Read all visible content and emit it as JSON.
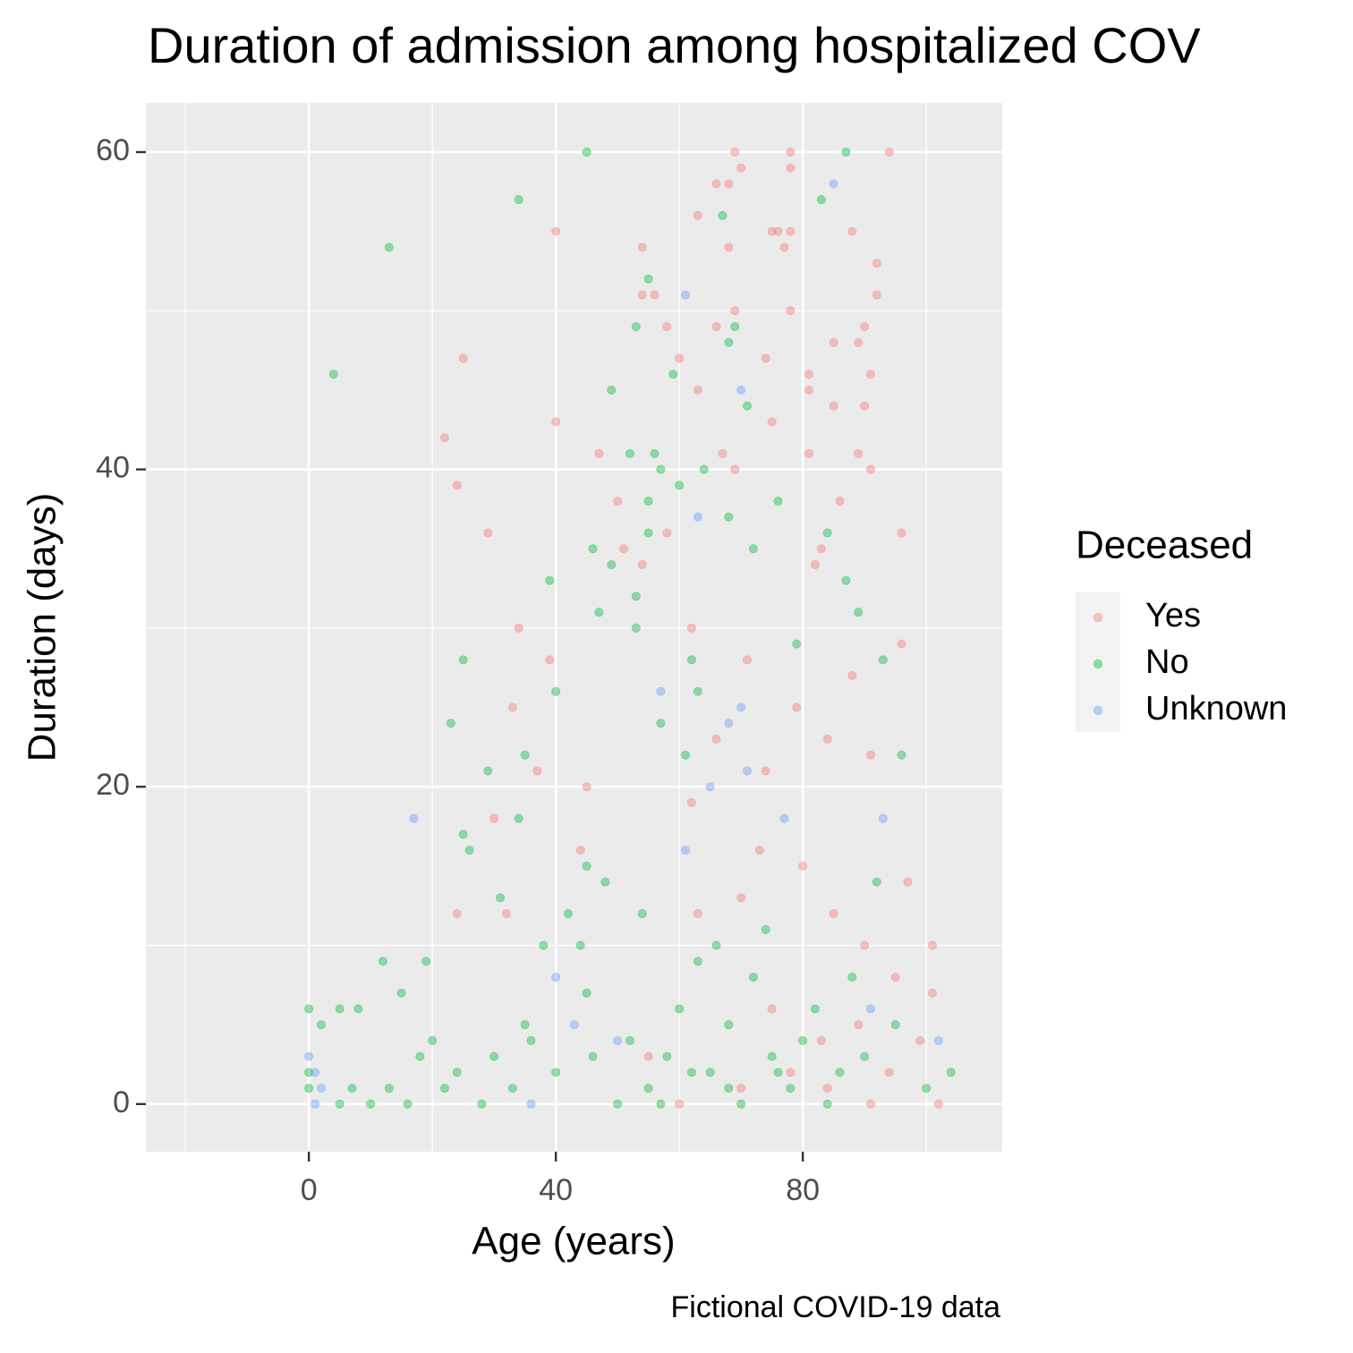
{
  "chart_data": {
    "type": "scatter",
    "title": "Duration of admission among hospitalized COV",
    "x_label": "Age (years)",
    "y_label": "Duration (days)",
    "caption": "Fictional COVID-19 data",
    "legend_title": "Deceased",
    "legend_position": "right",
    "grid": true,
    "xlim": [
      -26.4,
      112.3
    ],
    "xticks": [
      0,
      40,
      80
    ],
    "x_minor_ticks": [
      -20,
      20,
      60,
      100
    ],
    "ylim": [
      -3.0,
      63.1
    ],
    "yticks": [
      0,
      20,
      40,
      60
    ],
    "y_minor_ticks": [
      10,
      30,
      50
    ],
    "series": [
      {
        "name": "Yes",
        "color": "#F8766D",
        "x": [
          69,
          78,
          94,
          70,
          78,
          66,
          68,
          63,
          75,
          76,
          78,
          88,
          40,
          54,
          68,
          77,
          92,
          54,
          56,
          92,
          69,
          78,
          58,
          66,
          90,
          85,
          89,
          25,
          74,
          60,
          81,
          91,
          81,
          63,
          85,
          90,
          75,
          40,
          22,
          81,
          89,
          47,
          67,
          24,
          91,
          69,
          50,
          86,
          29,
          96,
          58,
          83,
          51,
          54,
          82,
          34,
          39,
          62,
          33,
          37,
          30,
          45,
          88,
          96,
          71,
          79,
          66,
          74,
          84,
          91,
          62,
          73,
          80,
          97,
          85,
          63,
          90,
          101,
          95,
          101,
          75,
          89,
          83,
          99,
          55,
          94,
          70,
          102,
          91,
          84,
          78,
          60,
          32,
          24,
          44,
          70
        ],
        "values": [
          60,
          60,
          60,
          59,
          59,
          58,
          58,
          56,
          55,
          55,
          55,
          55,
          55,
          54,
          54,
          54,
          53,
          51,
          51,
          51,
          50,
          50,
          49,
          49,
          49,
          48,
          48,
          47,
          47,
          47,
          46,
          46,
          45,
          45,
          44,
          44,
          43,
          43,
          42,
          41,
          41,
          41,
          41,
          39,
          40,
          40,
          38,
          38,
          36,
          36,
          36,
          35,
          35,
          34,
          34,
          30,
          28,
          30,
          25,
          21,
          18,
          20,
          27,
          29,
          28,
          25,
          23,
          21,
          23,
          22,
          19,
          16,
          15,
          14,
          12,
          12,
          10,
          10,
          8,
          7,
          6,
          5,
          4,
          4,
          3,
          2,
          1,
          0,
          0,
          1,
          2,
          0,
          12,
          12,
          16,
          13
        ]
      },
      {
        "name": "No",
        "color": "#00BA38",
        "x": [
          45,
          87,
          34,
          83,
          13,
          55,
          67,
          53,
          69,
          4,
          59,
          68,
          49,
          71,
          52,
          56,
          57,
          64,
          60,
          55,
          76,
          68,
          55,
          84,
          46,
          72,
          49,
          39,
          87,
          53,
          47,
          89,
          53,
          79,
          25,
          62,
          40,
          63,
          23,
          57,
          93,
          96,
          29,
          35,
          61,
          25,
          26,
          45,
          31,
          34,
          15,
          12,
          19,
          0,
          2,
          5,
          8,
          0,
          0,
          5,
          10,
          7,
          13,
          16,
          22,
          28,
          30,
          35,
          40,
          45,
          50,
          52,
          55,
          58,
          60,
          63,
          65,
          68,
          70,
          72,
          75,
          78,
          80,
          82,
          86,
          90,
          95,
          104,
          100,
          38,
          44,
          42,
          48,
          54,
          66,
          74,
          88,
          92,
          18,
          20,
          24,
          33,
          36,
          46,
          57,
          62,
          68,
          76,
          84
        ],
        "values": [
          60,
          60,
          57,
          57,
          54,
          52,
          56,
          49,
          49,
          46,
          46,
          48,
          45,
          44,
          41,
          41,
          40,
          40,
          39,
          38,
          38,
          37,
          36,
          36,
          35,
          35,
          34,
          33,
          33,
          32,
          31,
          31,
          30,
          29,
          28,
          28,
          26,
          26,
          24,
          24,
          28,
          22,
          21,
          22,
          22,
          17,
          16,
          15,
          13,
          18,
          7,
          9,
          9,
          6,
          5,
          6,
          6,
          1,
          2,
          0,
          0,
          1,
          1,
          0,
          1,
          0,
          3,
          5,
          2,
          7,
          0,
          4,
          1,
          3,
          6,
          9,
          2,
          5,
          0,
          8,
          3,
          1,
          4,
          6,
          2,
          3,
          5,
          2,
          1,
          10,
          10,
          12,
          14,
          12,
          10,
          11,
          8,
          14,
          3,
          4,
          2,
          1,
          4,
          3,
          0,
          2,
          1,
          2,
          0
        ]
      },
      {
        "name": "Unknown",
        "color": "#619CFF",
        "x": [
          85,
          61,
          70,
          63,
          17,
          65,
          70,
          71,
          61,
          77,
          93,
          68,
          1,
          1,
          2,
          0,
          40,
          43,
          91,
          102,
          36,
          50,
          57
        ],
        "values": [
          58,
          51,
          45,
          37,
          18,
          20,
          25,
          21,
          16,
          18,
          18,
          24,
          0,
          2,
          1,
          3,
          8,
          5,
          6,
          4,
          0,
          4,
          26
        ]
      }
    ]
  }
}
